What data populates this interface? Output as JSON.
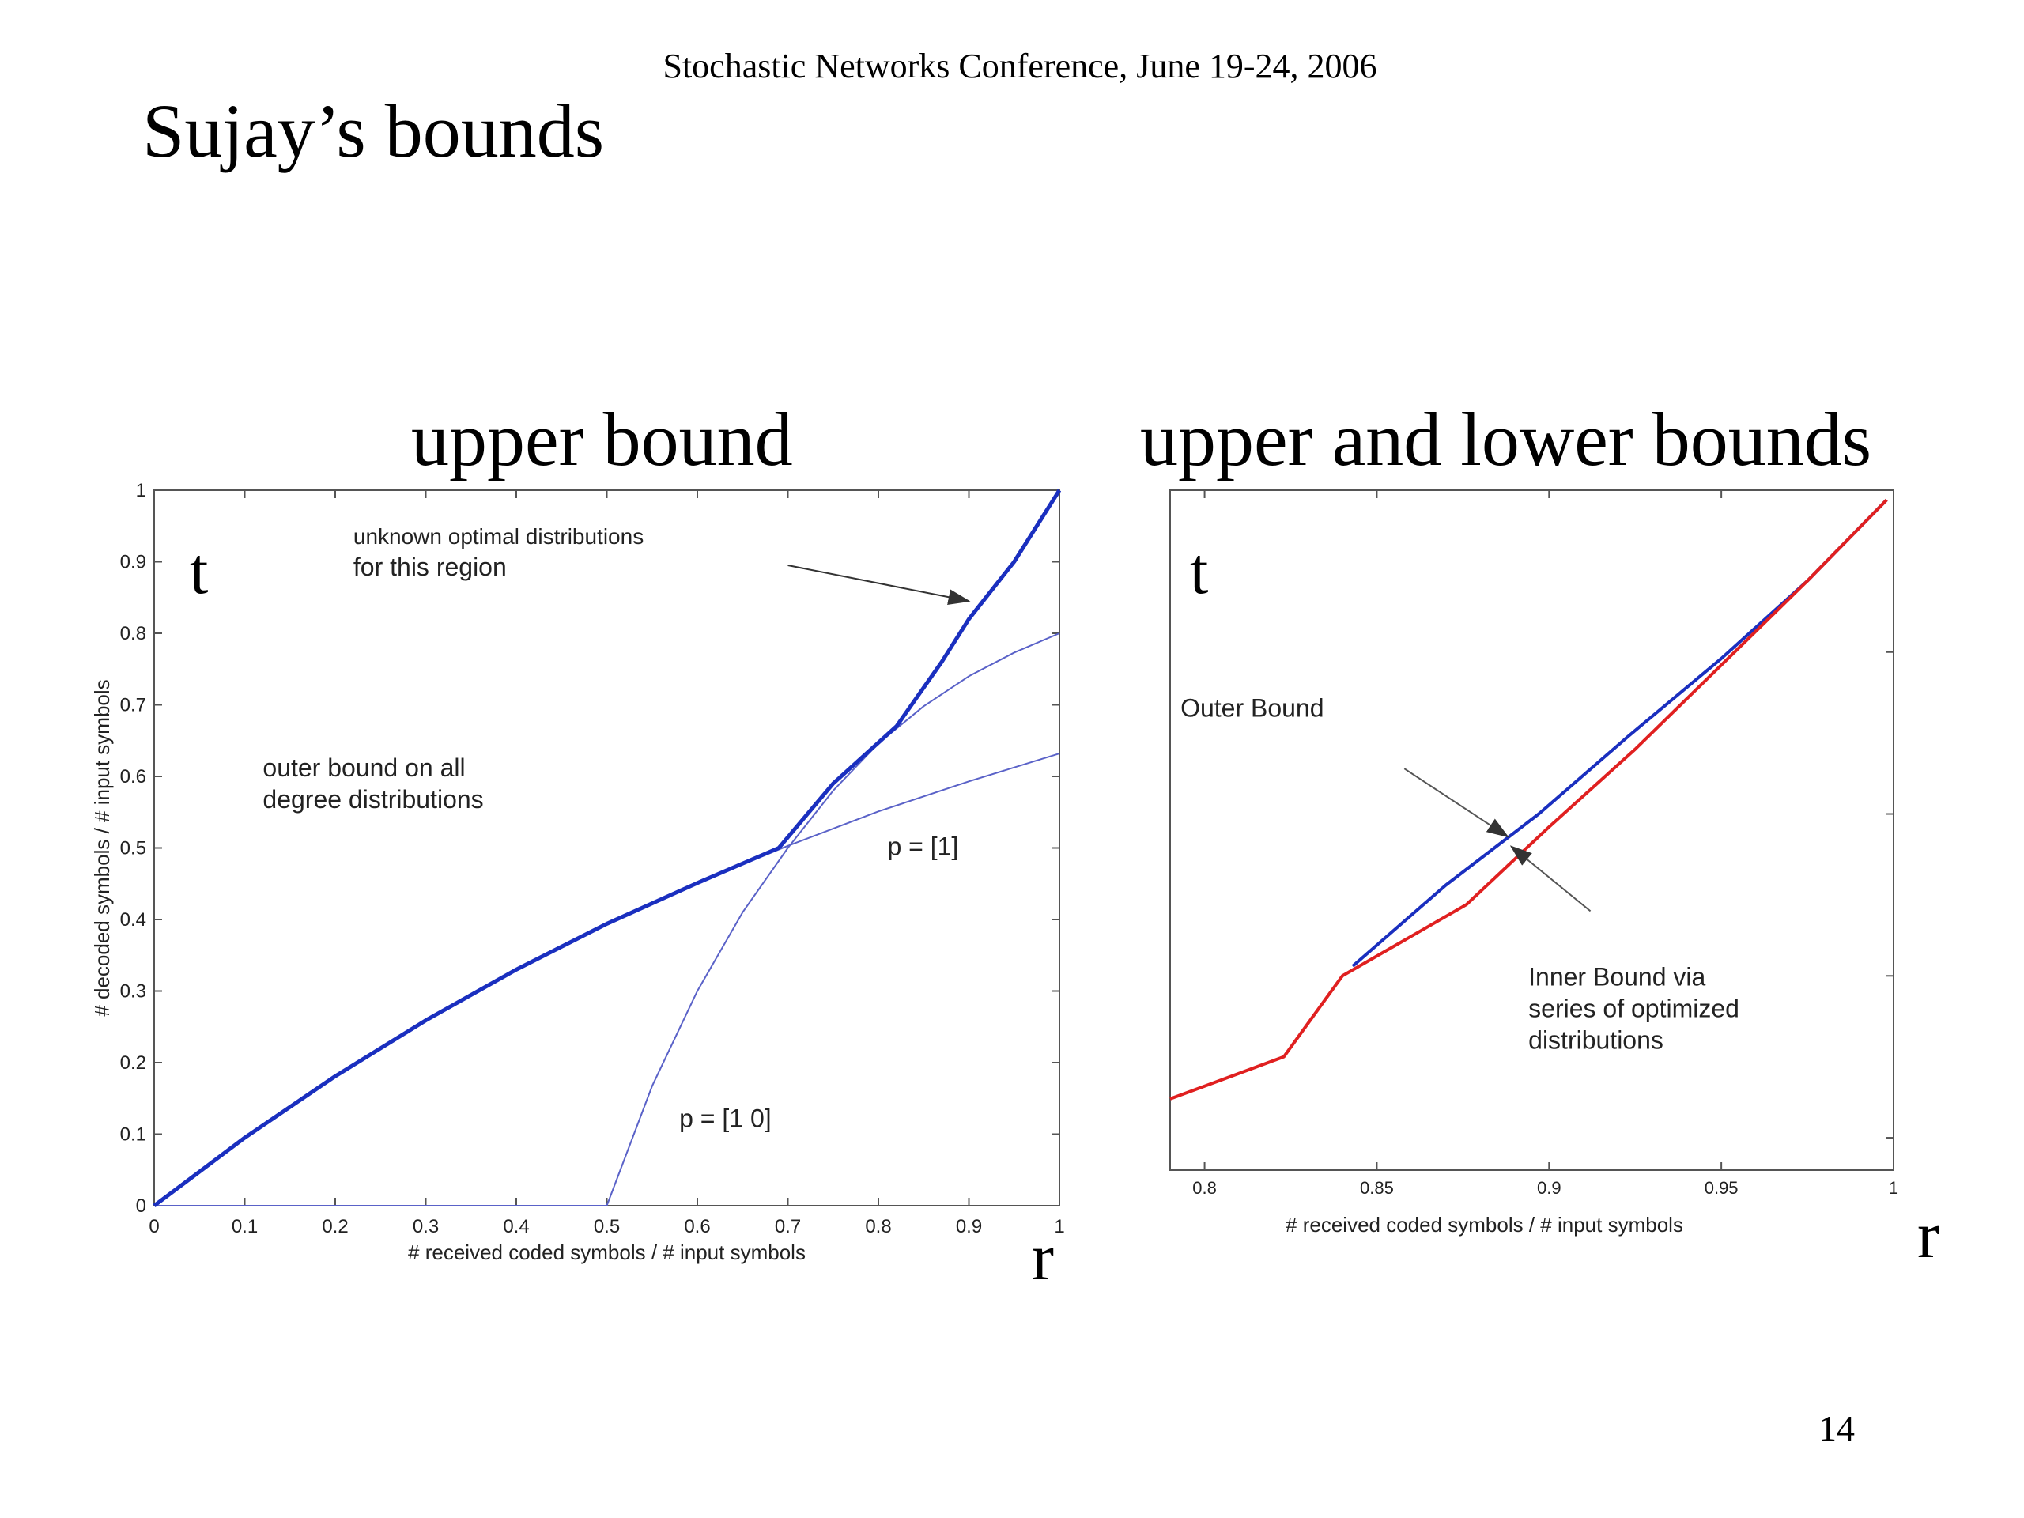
{
  "slide": {
    "header": "Stochastic Networks Conference, June 19-24, 2006",
    "title": "Sujay’s bounds",
    "page_number": "14"
  },
  "colors": {
    "bound_blue": "#1a2fbf",
    "thin_blue": "#5a62c8",
    "inner_red": "#e02020",
    "axis": "#555555"
  },
  "chart_data": [
    {
      "type": "line",
      "panel_title": "upper bound",
      "xlabel": "# received coded symbols / # input symbols",
      "ylabel": "# decoded symbols / # input symbols",
      "xlim": [
        0,
        1
      ],
      "ylim": [
        0,
        1
      ],
      "x_ticks": [
        "0",
        "0.1",
        "0.2",
        "0.3",
        "0.4",
        "0.5",
        "0.6",
        "0.7",
        "0.8",
        "0.9",
        "1"
      ],
      "y_ticks": [
        "0",
        "0.1",
        "0.2",
        "0.3",
        "0.4",
        "0.5",
        "0.6",
        "0.7",
        "0.8",
        "0.9",
        "1"
      ],
      "axis_letter_y": "t",
      "axis_letter_x": "r",
      "series": [
        {
          "name": "p = [1]",
          "style": "thin",
          "x": [
            0,
            0.1,
            0.2,
            0.3,
            0.4,
            0.5,
            0.6,
            0.7,
            0.8,
            0.9,
            1.0
          ],
          "y": [
            0,
            0.095,
            0.181,
            0.259,
            0.33,
            0.394,
            0.451,
            0.503,
            0.551,
            0.593,
            0.632
          ]
        },
        {
          "name": "p = [1 0]",
          "style": "thin",
          "x": [
            0,
            0.5,
            0.55,
            0.6,
            0.65,
            0.7,
            0.75,
            0.8,
            0.85,
            0.9,
            0.95,
            1.0
          ],
          "y": [
            0,
            0,
            0.167,
            0.3,
            0.41,
            0.5,
            0.58,
            0.646,
            0.698,
            0.74,
            0.773,
            0.8
          ]
        },
        {
          "name": "outer bound on all degree distributions",
          "style": "thick",
          "x": [
            0,
            0.1,
            0.2,
            0.3,
            0.4,
            0.5,
            0.6,
            0.69,
            0.75,
            0.82,
            0.87,
            0.9,
            0.95,
            1.0
          ],
          "y": [
            0,
            0.095,
            0.181,
            0.259,
            0.33,
            0.394,
            0.451,
            0.5,
            0.59,
            0.67,
            0.76,
            0.82,
            0.9,
            1.0
          ]
        }
      ],
      "annotations": [
        {
          "text_lines": [
            "unknown optimal distributions",
            "for this region"
          ],
          "x": 0.22,
          "y": 0.925,
          "arrow_from": [
            0.7,
            0.895
          ],
          "arrow_to": [
            0.9,
            0.845
          ]
        },
        {
          "text_lines": [
            "outer bound on all",
            "degree distributions"
          ],
          "x": 0.12,
          "y": 0.6
        },
        {
          "text_lines": [
            "p = [1]"
          ],
          "x": 0.81,
          "y": 0.49
        },
        {
          "text_lines": [
            "p = [1 0]"
          ],
          "x": 0.58,
          "y": 0.11
        }
      ]
    },
    {
      "type": "line",
      "panel_title": "upper and lower bounds",
      "xlabel": "# received coded symbols / # input symbols",
      "xlim": [
        0.79,
        1.0
      ],
      "ylim": [
        0.79,
        1.0
      ],
      "x_ticks": [
        "0.8",
        "0.85",
        "0.9",
        "0.95",
        "1"
      ],
      "axis_letter_y": "t",
      "axis_letter_x": "r",
      "series": [
        {
          "name": "Outer Bound",
          "color": "blue",
          "x": [
            0.843,
            0.87,
            0.897,
            0.923,
            0.95,
            0.975,
            0.998
          ],
          "y": [
            0.853,
            0.878,
            0.9,
            0.924,
            0.948,
            0.972,
            0.997
          ]
        },
        {
          "name": "Inner Bound via series of optimized distributions",
          "color": "red",
          "x": [
            0.79,
            0.823,
            0.84,
            0.876,
            0.9,
            0.925,
            0.95,
            0.975,
            0.998
          ],
          "y": [
            0.812,
            0.825,
            0.85,
            0.872,
            0.896,
            0.92,
            0.946,
            0.972,
            0.997
          ]
        }
      ],
      "annotations": [
        {
          "text_lines": [
            "Outer Bound"
          ],
          "x": 0.793,
          "y": 0.93,
          "arrow_from": [
            0.858,
            0.914
          ],
          "arrow_to": [
            0.888,
            0.893
          ]
        },
        {
          "text_lines": [
            "Inner Bound via",
            "series of optimized",
            "distributions"
          ],
          "x": 0.894,
          "y": 0.847,
          "arrow_from": [
            0.912,
            0.87
          ],
          "arrow_to": [
            0.889,
            0.89
          ]
        }
      ]
    }
  ]
}
